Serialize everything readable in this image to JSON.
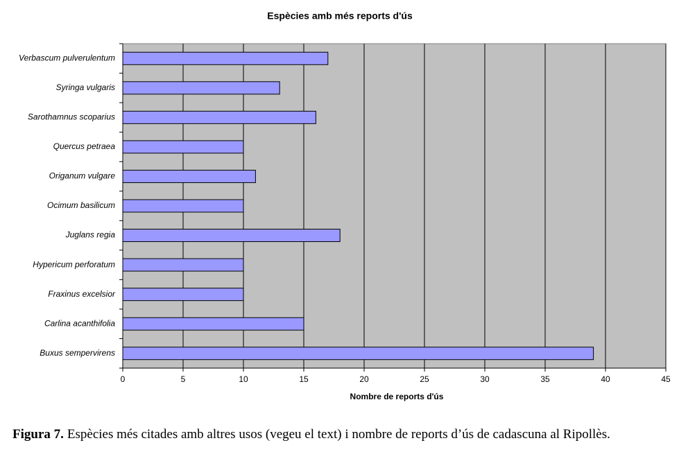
{
  "chart_data": {
    "type": "barh",
    "title": "Espècies amb més reports d'ús",
    "xlabel": "Nombre de reports d'ús",
    "categories": [
      "Verbascum pulverulentum",
      "Syringa vulgaris",
      "Sarothamnus scoparius",
      "Quercus petraea",
      "Origanum vulgare",
      "Ocimum basilicum",
      "Juglans regia",
      "Hypericum perforatum",
      "Fraxinus excelsior",
      "Carlina acanthifolia",
      "Buxus sempervirens"
    ],
    "values": [
      17,
      13,
      16,
      10,
      11,
      10,
      18,
      10,
      10,
      15,
      39
    ],
    "color": "#9999ff",
    "background": "#c0c0c0",
    "xlim": [
      0,
      45
    ],
    "xticks": [
      0,
      5,
      10,
      15,
      20,
      25,
      30,
      35,
      40,
      45
    ],
    "grid": true
  },
  "caption": {
    "label": "Figura 7.",
    "text": "Espècies més citades amb altres usos (vegeu el text) i nombre de reports d’ús de cadascuna al Ripollès."
  }
}
